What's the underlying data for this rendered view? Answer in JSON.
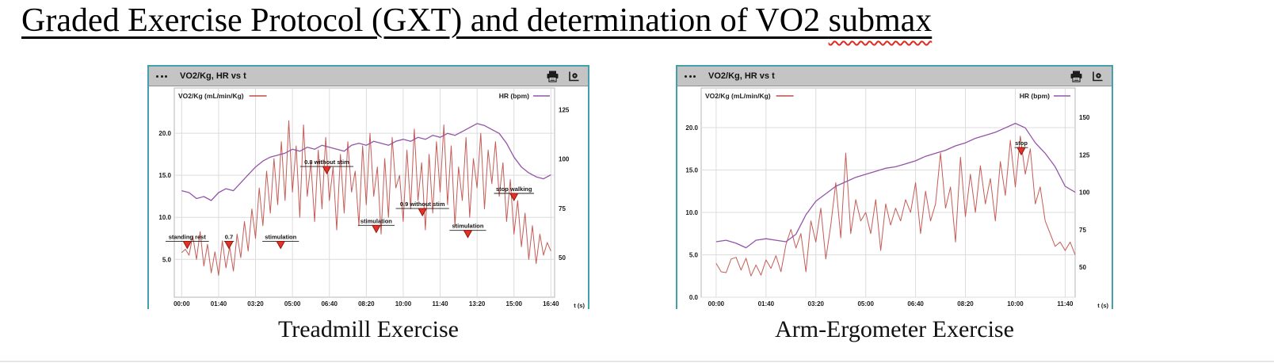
{
  "page": {
    "title": "Graded Exercise Protocol (GXT) and determination of VO2 submax",
    "title_main": "Graded Exercise Protocol (GXT) and determination of VO2 ",
    "title_misspelled": "submax"
  },
  "panels": [
    {
      "header_title": "VO2/Kg, HR vs t",
      "icons": [
        "menu-icon",
        "printer-icon",
        "export-settings-icon"
      ],
      "caption": "Treadmill Exercise"
    },
    {
      "header_title": "VO2/Kg, HR vs t",
      "icons": [
        "menu-icon",
        "printer-icon",
        "export-settings-icon"
      ],
      "caption": "Arm-Ergometer Exercise"
    }
  ],
  "chart_data": [
    {
      "type": "line",
      "title": "VO2/Kg, HR vs t",
      "context": "Treadmill Exercise",
      "xlabel": "t (s)",
      "x_tick_seconds": [
        0,
        100,
        200,
        300,
        400,
        500,
        600,
        700,
        800,
        900,
        1000
      ],
      "x_tick_labels": [
        "00:00",
        "01:40",
        "03:20",
        "05:00",
        "06:40",
        "08:20",
        "10:00",
        "11:40",
        "13:20",
        "15:00",
        "16:40"
      ],
      "x_range_s": [
        -20,
        1010
      ],
      "grid": true,
      "legend_position": "top",
      "left_axis": {
        "label": "VO2/Kg (mL/min/Kg)",
        "ticks": [
          5,
          10,
          15,
          20
        ],
        "tick_labels": [
          "5.0",
          "10.0",
          "15.0",
          "20.0"
        ],
        "range": [
          0.5,
          23.5
        ],
        "color": "#bf4a44"
      },
      "right_axis": {
        "label": "HR (bpm)",
        "ticks": [
          50,
          75,
          100,
          125
        ],
        "tick_labels": [
          "50",
          "75",
          "100",
          "125"
        ],
        "range": [
          30,
          128
        ],
        "color": "#9455a8"
      },
      "series": [
        {
          "name": "VO2/Kg (mL/min/Kg)",
          "axis": "left",
          "color": "#bf4a44",
          "t0_s": 0,
          "t_step_s": 10,
          "values": [
            5.8,
            6.2,
            5.5,
            7.8,
            5.0,
            8.3,
            4.2,
            6.8,
            3.4,
            5.9,
            3.1,
            7.2,
            4.0,
            6.5,
            3.6,
            8.0,
            5.2,
            9.5,
            6.0,
            11.0,
            7.5,
            13.5,
            9.0,
            15.5,
            10.5,
            17.0,
            11.5,
            19.0,
            12.0,
            21.5,
            13.0,
            18.5,
            10.0,
            21.0,
            12.5,
            16.5,
            9.5,
            18.0,
            11.0,
            19.5,
            12.0,
            16.0,
            8.5,
            17.5,
            10.5,
            19.0,
            13.0,
            15.5,
            9.0,
            18.5,
            11.5,
            20.0,
            12.5,
            16.0,
            8.0,
            17.0,
            10.0,
            19.5,
            13.5,
            15.0,
            9.5,
            18.0,
            11.0,
            20.5,
            12.0,
            16.5,
            8.5,
            17.5,
            10.5,
            19.0,
            13.0,
            21.0,
            11.5,
            18.5,
            9.0,
            16.0,
            12.0,
            19.5,
            10.0,
            17.0,
            13.5,
            20.0,
            11.0,
            18.0,
            14.0,
            19.0,
            12.5,
            16.5,
            9.5,
            14.5,
            8.0,
            12.0,
            6.5,
            10.5,
            5.0,
            9.0,
            4.5,
            8.0,
            5.5,
            7.0,
            6.0
          ]
        },
        {
          "name": "HR (bpm)",
          "axis": "right",
          "color": "#9455a8",
          "t0_s": 0,
          "t_step_s": 20,
          "values": [
            84,
            83,
            80,
            81,
            79,
            83,
            85,
            84,
            88,
            92,
            96,
            99,
            101,
            102,
            103,
            105,
            104,
            106,
            105,
            107,
            106,
            105,
            104,
            107,
            108,
            107,
            109,
            108,
            107,
            109,
            110,
            109,
            111,
            110,
            112,
            111,
            113,
            112,
            114,
            116,
            118,
            117,
            115,
            113,
            108,
            101,
            96,
            93,
            91,
            90,
            92
          ]
        }
      ],
      "annotations": [
        {
          "t_s": 15,
          "value": 6.3,
          "label": "standing rest"
        },
        {
          "t_s": 128,
          "value": 6.3,
          "label": "0.7"
        },
        {
          "t_s": 268,
          "value": 6.3,
          "label": "stimulation"
        },
        {
          "t_s": 393,
          "value": 15.2,
          "label": "0.8 without stim"
        },
        {
          "t_s": 527,
          "value": 8.2,
          "label": "stimulation"
        },
        {
          "t_s": 652,
          "value": 10.2,
          "label": "0.9 without stim"
        },
        {
          "t_s": 775,
          "value": 7.6,
          "label": "stimulation"
        },
        {
          "t_s": 900,
          "value": 12.0,
          "label": "stop walking"
        }
      ]
    },
    {
      "type": "line",
      "title": "VO2/Kg, HR vs t",
      "context": "Arm-Ergometer Exercise",
      "xlabel": "t (s)",
      "x_tick_seconds": [
        0,
        100,
        200,
        300,
        400,
        500,
        600,
        700
      ],
      "x_tick_labels": [
        "00:00",
        "01:40",
        "03:20",
        "05:00",
        "06:40",
        "08:20",
        "10:00",
        "11:40"
      ],
      "x_range_s": [
        -30,
        720
      ],
      "grid": true,
      "legend_position": "top",
      "left_axis": {
        "label": "VO2/Kg (mL/min/Kg)",
        "ticks": [
          0,
          5,
          10,
          15,
          20
        ],
        "tick_labels": [
          "0.0",
          "5.0",
          "10.0",
          "15.0",
          "20.0"
        ],
        "range": [
          0,
          22.8
        ],
        "color": "#bf4a44"
      },
      "right_axis": {
        "label": "HR (bpm)",
        "ticks": [
          50,
          75,
          100,
          125,
          150
        ],
        "tick_labels": [
          "50",
          "75",
          "100",
          "125",
          "150"
        ],
        "range": [
          30,
          159
        ],
        "color": "#9455a8"
      },
      "series": [
        {
          "name": "VO2/Kg (mL/min/Kg)",
          "axis": "left",
          "color": "#bf4a44",
          "t0_s": 0,
          "t_step_s": 10,
          "values": [
            4.0,
            3.0,
            2.9,
            4.5,
            4.7,
            3.2,
            4.6,
            2.5,
            3.8,
            2.6,
            4.4,
            3.4,
            4.9,
            3.0,
            6.2,
            8.0,
            5.8,
            7.5,
            3.0,
            9.0,
            6.5,
            10.5,
            4.5,
            8.5,
            13.5,
            7.0,
            17.0,
            7.5,
            11.5,
            9.0,
            10.0,
            7.5,
            11.5,
            5.5,
            11.0,
            8.5,
            10.5,
            9.0,
            11.5,
            10.0,
            13.5,
            7.5,
            12.5,
            9.0,
            11.0,
            17.0,
            10.5,
            13.0,
            6.5,
            16.5,
            9.5,
            14.5,
            10.0,
            15.5,
            11.0,
            14.0,
            9.0,
            16.0,
            12.0,
            18.5,
            13.0,
            19.0,
            14.5,
            17.5,
            11.0,
            13.0,
            9.0,
            7.5,
            6.0,
            6.5,
            5.5,
            6.5,
            5.0
          ]
        },
        {
          "name": "HR (bpm)",
          "axis": "right",
          "color": "#9455a8",
          "t0_s": 0,
          "t_step_s": 20,
          "values": [
            67,
            68,
            66,
            63,
            68,
            69,
            68,
            67,
            72,
            85,
            94,
            99,
            104,
            107,
            110,
            112,
            114,
            116,
            117,
            119,
            121,
            124,
            126,
            128,
            131,
            133,
            136,
            138,
            140,
            143,
            146,
            143,
            133,
            126,
            117,
            104,
            100
          ]
        }
      ],
      "annotations": [
        {
          "t_s": 612,
          "value": 16.8,
          "label": "stop"
        }
      ]
    }
  ],
  "colors": {
    "vo2_series": "#bf4a44",
    "hr_series": "#9455a8",
    "panel_border": "#46a0ab",
    "header_background": "#c4c4c4",
    "annotation_marker": "#e63226"
  }
}
